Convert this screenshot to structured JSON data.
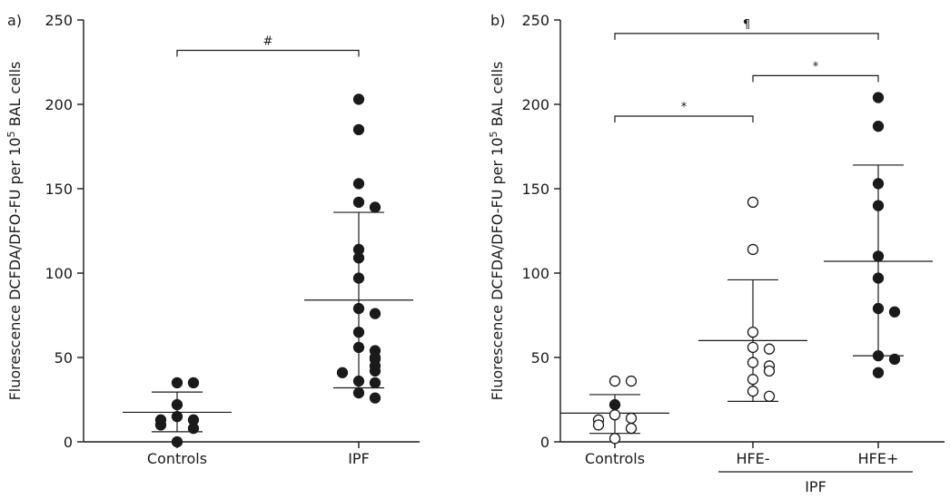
{
  "chart_data": [
    {
      "panel_label": "a)",
      "type": "scatter",
      "ylabel_main": "Fluorescence DCFDA/DFO-FU per 10",
      "ylabel_sup": "5",
      "ylabel_tail": " BAL cells",
      "ylim": [
        0,
        250
      ],
      "yticks": [
        "0",
        "50",
        "100",
        "150",
        "200",
        "250"
      ],
      "categories": [
        "Controls",
        "IPF"
      ],
      "groups": [
        {
          "category": "Controls",
          "filled": true,
          "values": [
            35,
            35,
            22,
            15,
            13,
            13,
            10,
            8,
            0
          ],
          "mean": 17.5,
          "sd_low": 6,
          "sd_high": 29.5
        },
        {
          "category": "IPF",
          "filled": true,
          "values": [
            203,
            185,
            153,
            142,
            139,
            114,
            109,
            97,
            79,
            76,
            65,
            56,
            54,
            50,
            49,
            45,
            42,
            41,
            36,
            35,
            29,
            26
          ],
          "mean": 84,
          "sd_low": 32,
          "sd_high": 136
        }
      ],
      "brackets": [
        {
          "from": 0,
          "to": 1,
          "label": "#",
          "level": 232
        }
      ]
    },
    {
      "panel_label": "b)",
      "type": "scatter",
      "ylabel_main": "Fluorescence DCFDA/DFO-FU per 10",
      "ylabel_sup": "5",
      "ylabel_tail": " BAL cells",
      "ylim": [
        0,
        250
      ],
      "yticks": [
        "0",
        "50",
        "100",
        "150",
        "200",
        "250"
      ],
      "categories": [
        "Controls",
        "HFE-",
        "HFE+"
      ],
      "group_label": "IPF",
      "groups": [
        {
          "category": "Controls",
          "points": [
            {
              "v": 36,
              "filled": false
            },
            {
              "v": 36,
              "filled": false
            },
            {
              "v": 22,
              "filled": true
            },
            {
              "v": 16,
              "filled": false
            },
            {
              "v": 14,
              "filled": false
            },
            {
              "v": 13,
              "filled": false
            },
            {
              "v": 10,
              "filled": false
            },
            {
              "v": 8,
              "filled": false
            },
            {
              "v": 2,
              "filled": false
            }
          ],
          "mean": 17,
          "sd_low": 5,
          "sd_high": 28
        },
        {
          "category": "HFE-",
          "points": [
            {
              "v": 142,
              "filled": false
            },
            {
              "v": 114,
              "filled": false
            },
            {
              "v": 65,
              "filled": false
            },
            {
              "v": 56,
              "filled": false
            },
            {
              "v": 55,
              "filled": false
            },
            {
              "v": 47,
              "filled": false
            },
            {
              "v": 45,
              "filled": false
            },
            {
              "v": 42,
              "filled": false
            },
            {
              "v": 37,
              "filled": false
            },
            {
              "v": 30,
              "filled": false
            },
            {
              "v": 27,
              "filled": false
            }
          ],
          "mean": 60,
          "sd_low": 24,
          "sd_high": 96
        },
        {
          "category": "HFE+",
          "points": [
            {
              "v": 204,
              "filled": true
            },
            {
              "v": 187,
              "filled": true
            },
            {
              "v": 153,
              "filled": true
            },
            {
              "v": 140,
              "filled": true
            },
            {
              "v": 110,
              "filled": true
            },
            {
              "v": 97,
              "filled": true
            },
            {
              "v": 79,
              "filled": true
            },
            {
              "v": 77,
              "filled": true
            },
            {
              "v": 51,
              "filled": true
            },
            {
              "v": 49,
              "filled": true
            },
            {
              "v": 41,
              "filled": true
            }
          ],
          "mean": 107,
          "sd_low": 51,
          "sd_high": 164
        }
      ],
      "brackets": [
        {
          "from": 0,
          "to": 2,
          "label": "¶",
          "level": 242
        },
        {
          "from": 1,
          "to": 2,
          "label": "*",
          "level": 217
        },
        {
          "from": 0,
          "to": 1,
          "label": "*",
          "level": 193
        }
      ]
    }
  ]
}
